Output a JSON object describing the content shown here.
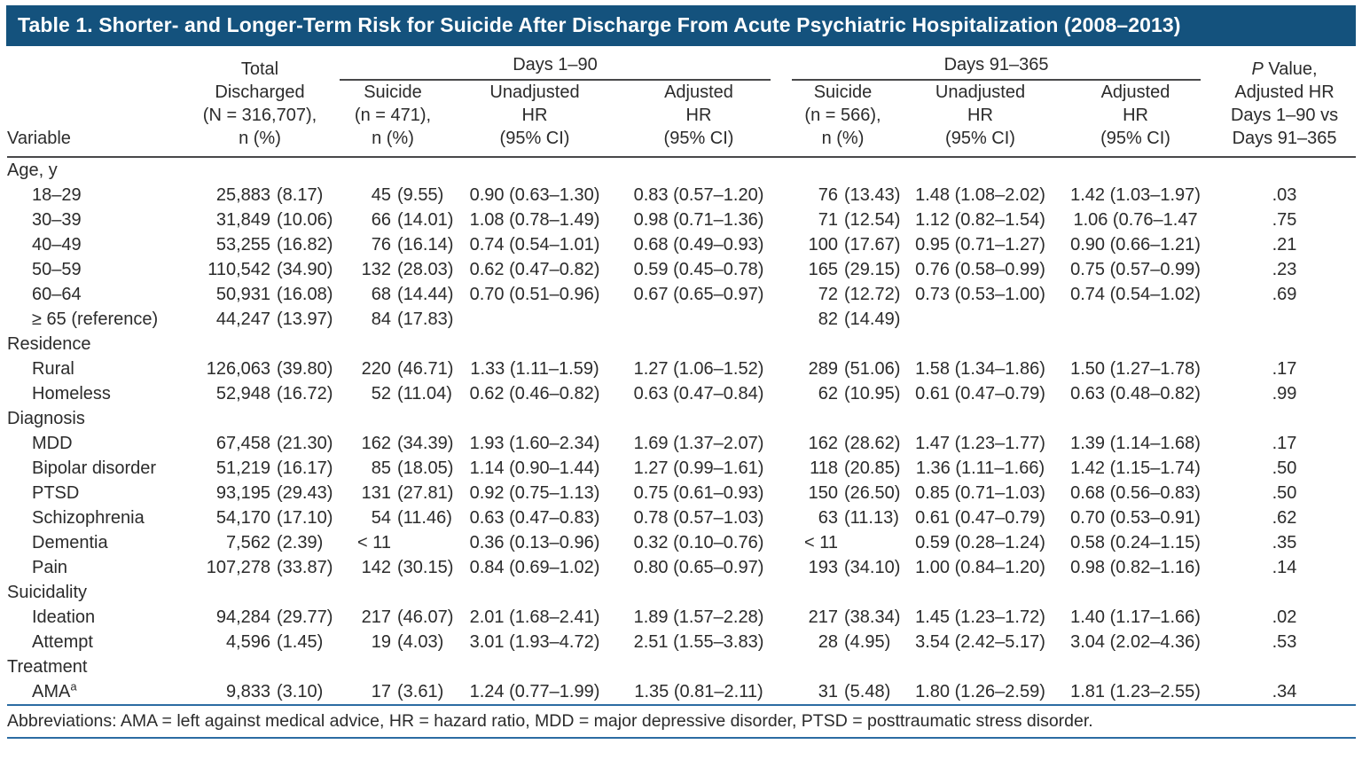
{
  "title": "Table 1. Shorter- and Longer-Term Risk for Suicide After Discharge From Acute Psychiatric Hospitalization (2008–2013)",
  "header": {
    "variable": "Variable",
    "total": "Total\nDischarged\n(N = 316,707),\nn (%)",
    "group_1_90": {
      "label": "Days 1–90",
      "cols": [
        "Suicide\n(n = 471),\nn (%)",
        "Unadjusted\nHR\n(95% CI)",
        "Adjusted\nHR\n(95% CI)"
      ]
    },
    "group_91_365": {
      "label": "Days 91–365",
      "cols": [
        "Suicide\n(n = 566),\nn (%)",
        "Unadjusted\nHR\n(95% CI)",
        "Adjusted\nHR\n(95% CI)"
      ]
    },
    "p_italic": "P",
    "p_rest": " Value,\nAdjusted HR\nDays 1–90 vs\nDays 91–365"
  },
  "sections": [
    {
      "label": "Age, y",
      "rows": [
        {
          "label": "18–29",
          "cells": [
            "25,883 (8.17)",
            "45 (9.55)",
            "0.90 (0.63–1.30)",
            "0.83 (0.57–1.20)",
            "76 (13.43)",
            "1.48 (1.08–2.02)",
            "1.42 (1.03–1.97)",
            ".03"
          ]
        },
        {
          "label": "30–39",
          "cells": [
            "31,849 (10.06)",
            "66 (14.01)",
            "1.08 (0.78–1.49)",
            "0.98 (0.71–1.36)",
            "71 (12.54)",
            "1.12 (0.82–1.54)",
            "1.06 (0.76–1.47",
            ".75"
          ]
        },
        {
          "label": "40–49",
          "cells": [
            "53,255 (16.82)",
            "76 (16.14)",
            "0.74 (0.54–1.01)",
            "0.68 (0.49–0.93)",
            "100 (17.67)",
            "0.95 (0.71–1.27)",
            "0.90 (0.66–1.21)",
            ".21"
          ]
        },
        {
          "label": "50–59",
          "cells": [
            "110,542 (34.90)",
            "132 (28.03)",
            "0.62 (0.47–0.82)",
            "0.59 (0.45–0.78)",
            "165 (29.15)",
            "0.76 (0.58–0.99)",
            "0.75 (0.57–0.99)",
            ".23"
          ]
        },
        {
          "label": "60–64",
          "cells": [
            "50,931 (16.08)",
            "68 (14.44)",
            "0.70 (0.51–0.96)",
            "0.67 (0.65–0.97)",
            "72 (12.72)",
            "0.73 (0.53–1.00)",
            "0.74 (0.54–1.02)",
            ".69"
          ]
        },
        {
          "label": "≥ 65 (reference)",
          "cells": [
            "44,247 (13.97)",
            "84 (17.83)",
            "",
            "",
            "82 (14.49)",
            "",
            "",
            ""
          ]
        }
      ]
    },
    {
      "label": "Residence",
      "rows": [
        {
          "label": "Rural",
          "cells": [
            "126,063 (39.80)",
            "220 (46.71)",
            "1.33 (1.11–1.59)",
            "1.27 (1.06–1.52)",
            "289 (51.06)",
            "1.58 (1.34–1.86)",
            "1.50 (1.27–1.78)",
            ".17"
          ]
        },
        {
          "label": "Homeless",
          "cells": [
            "52,948 (16.72)",
            "52 (11.04)",
            "0.62 (0.46–0.82)",
            "0.63 (0.47–0.84)",
            "62 (10.95)",
            "0.61 (0.47–0.79)",
            "0.63 (0.48–0.82)",
            ".99"
          ]
        }
      ]
    },
    {
      "label": "Diagnosis",
      "rows": [
        {
          "label": "MDD",
          "cells": [
            "67,458 (21.30)",
            "162 (34.39)",
            "1.93 (1.60–2.34)",
            "1.69 (1.37–2.07)",
            "162 (28.62)",
            "1.47 (1.23–1.77)",
            "1.39 (1.14–1.68)",
            ".17"
          ]
        },
        {
          "label": "Bipolar disorder",
          "cells": [
            "51,219 (16.17)",
            "85 (18.05)",
            "1.14 (0.90–1.44)",
            "1.27 (0.99–1.61)",
            "118 (20.85)",
            "1.36 (1.11–1.66)",
            "1.42 (1.15–1.74)",
            ".50"
          ]
        },
        {
          "label": "PTSD",
          "cells": [
            "93,195 (29.43)",
            "131 (27.81)",
            "0.92 (0.75–1.13)",
            "0.75 (0.61–0.93)",
            "150 (26.50)",
            "0.85 (0.71–1.03)",
            "0.68 (0.56–0.83)",
            ".50"
          ]
        },
        {
          "label": "Schizophrenia",
          "cells": [
            "54,170 (17.10)",
            "54 (11.46)",
            "0.63 (0.47–0.83)",
            "0.78 (0.57–1.03)",
            "63 (11.13)",
            "0.61 (0.47–0.79)",
            "0.70 (0.53–0.91)",
            ".62"
          ]
        },
        {
          "label": "Dementia",
          "cells": [
            "7,562 (2.39)",
            "< 11",
            "0.36 (0.13–0.96)",
            "0.32 (0.10–0.76)",
            "< 11",
            "0.59 (0.28–1.24)",
            "0.58 (0.24–1.15)",
            ".35"
          ]
        },
        {
          "label": "Pain",
          "cells": [
            "107,278 (33.87)",
            "142 (30.15)",
            "0.84 (0.69–1.02)",
            "0.80 (0.65–0.97)",
            "193 (34.10)",
            "1.00 (0.84–1.20)",
            "0.98 (0.82–1.16)",
            ".14"
          ]
        }
      ]
    },
    {
      "label": "Suicidality",
      "rows": [
        {
          "label": "Ideation",
          "cells": [
            "94,284 (29.77)",
            "217 (46.07)",
            "2.01 (1.68–2.41)",
            "1.89 (1.57–2.28)",
            "217 (38.34)",
            "1.45 (1.23–1.72)",
            "1.40 (1.17–1.66)",
            ".02"
          ]
        },
        {
          "label": "Attempt",
          "cells": [
            "4,596 (1.45)",
            "19 (4.03)",
            "3.01 (1.93–4.72)",
            "2.51 (1.55–3.83)",
            "28 (4.95)",
            "3.54 (2.42–5.17)",
            "3.04 (2.02–4.36)",
            ".53"
          ]
        }
      ]
    },
    {
      "label": "Treatment",
      "rows": [
        {
          "label": "AMA",
          "label_sup": "a",
          "cells": [
            "9,833 (3.10)",
            "17 (3.61)",
            "1.24 (0.77–1.99)",
            "1.35 (0.81–2.11)",
            "31 (5.48)",
            "1.80 (1.26–2.59)",
            "1.81 (1.23–2.55)",
            ".34"
          ]
        }
      ]
    }
  ],
  "footer": {
    "abbreviations": "Abbreviations: AMA = left against medical advice, HR = hazard ratio, MDD = major depressive disorder, PTSD = posttraumatic stress disorder."
  },
  "colors": {
    "title_bar": "#14527d",
    "rule_dark": "#48484a",
    "rule_blue": "#2b6ca3"
  }
}
